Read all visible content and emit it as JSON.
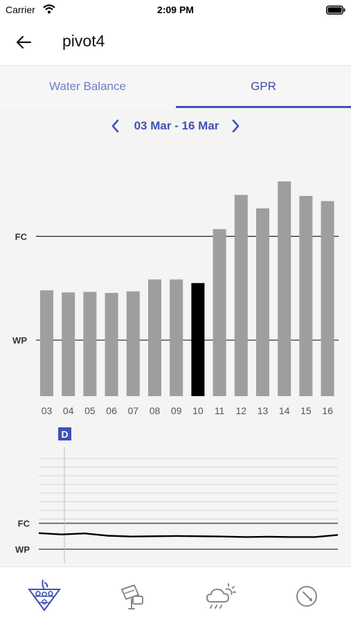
{
  "status_bar": {
    "carrier": "Carrier",
    "time": "2:09 PM"
  },
  "header": {
    "title": "pivot4"
  },
  "tabs": [
    {
      "label": "Water Balance",
      "selected": false
    },
    {
      "label": "GPR",
      "selected": true
    }
  ],
  "date_nav": {
    "range": "03 Mar - 16 Mar"
  },
  "colors": {
    "accent": "#3f51b5",
    "bar": "#9e9e9e",
    "bar_selected": "#000000",
    "tab_inactive": "#6f7cc7"
  },
  "chart_data": [
    {
      "type": "bar",
      "categories": [
        "03",
        "04",
        "05",
        "06",
        "07",
        "08",
        "09",
        "10",
        "11",
        "12",
        "13",
        "14",
        "15",
        "16"
      ],
      "values": [
        0.48,
        0.46,
        0.465,
        0.455,
        0.47,
        0.585,
        0.585,
        0.55,
        1.07,
        1.4,
        1.27,
        1.53,
        1.39,
        1.34
      ],
      "selected_category": "10",
      "reference_lines": [
        {
          "label": "FC",
          "value": 1.0
        },
        {
          "label": "WP",
          "value": 0.0
        }
      ],
      "ylim": [
        -0.54,
        1.81
      ],
      "grid": false
    },
    {
      "type": "line",
      "marker_label": "D",
      "marker_index": 1,
      "reference_lines": [
        {
          "label": "FC",
          "value": 1.0
        },
        {
          "label": "WP",
          "value": 0.0
        }
      ],
      "x": [
        "03",
        "04",
        "05",
        "06",
        "07",
        "08",
        "09",
        "10",
        "11",
        "12",
        "13",
        "14",
        "15",
        "16"
      ],
      "values": [
        0.62,
        0.57,
        0.61,
        0.52,
        0.49,
        0.5,
        0.51,
        0.5,
        0.49,
        0.47,
        0.48,
        0.47,
        0.47,
        0.55
      ],
      "ylim": [
        0.0,
        3.5
      ],
      "grid": true
    }
  ],
  "bottom_nav": [
    {
      "icon": "crop-field-icon",
      "active": true
    },
    {
      "icon": "irrigation-device-icon",
      "active": false
    },
    {
      "icon": "weather-cloud-sun-icon",
      "active": false
    },
    {
      "icon": "pivot-circle-icon",
      "active": false
    }
  ]
}
